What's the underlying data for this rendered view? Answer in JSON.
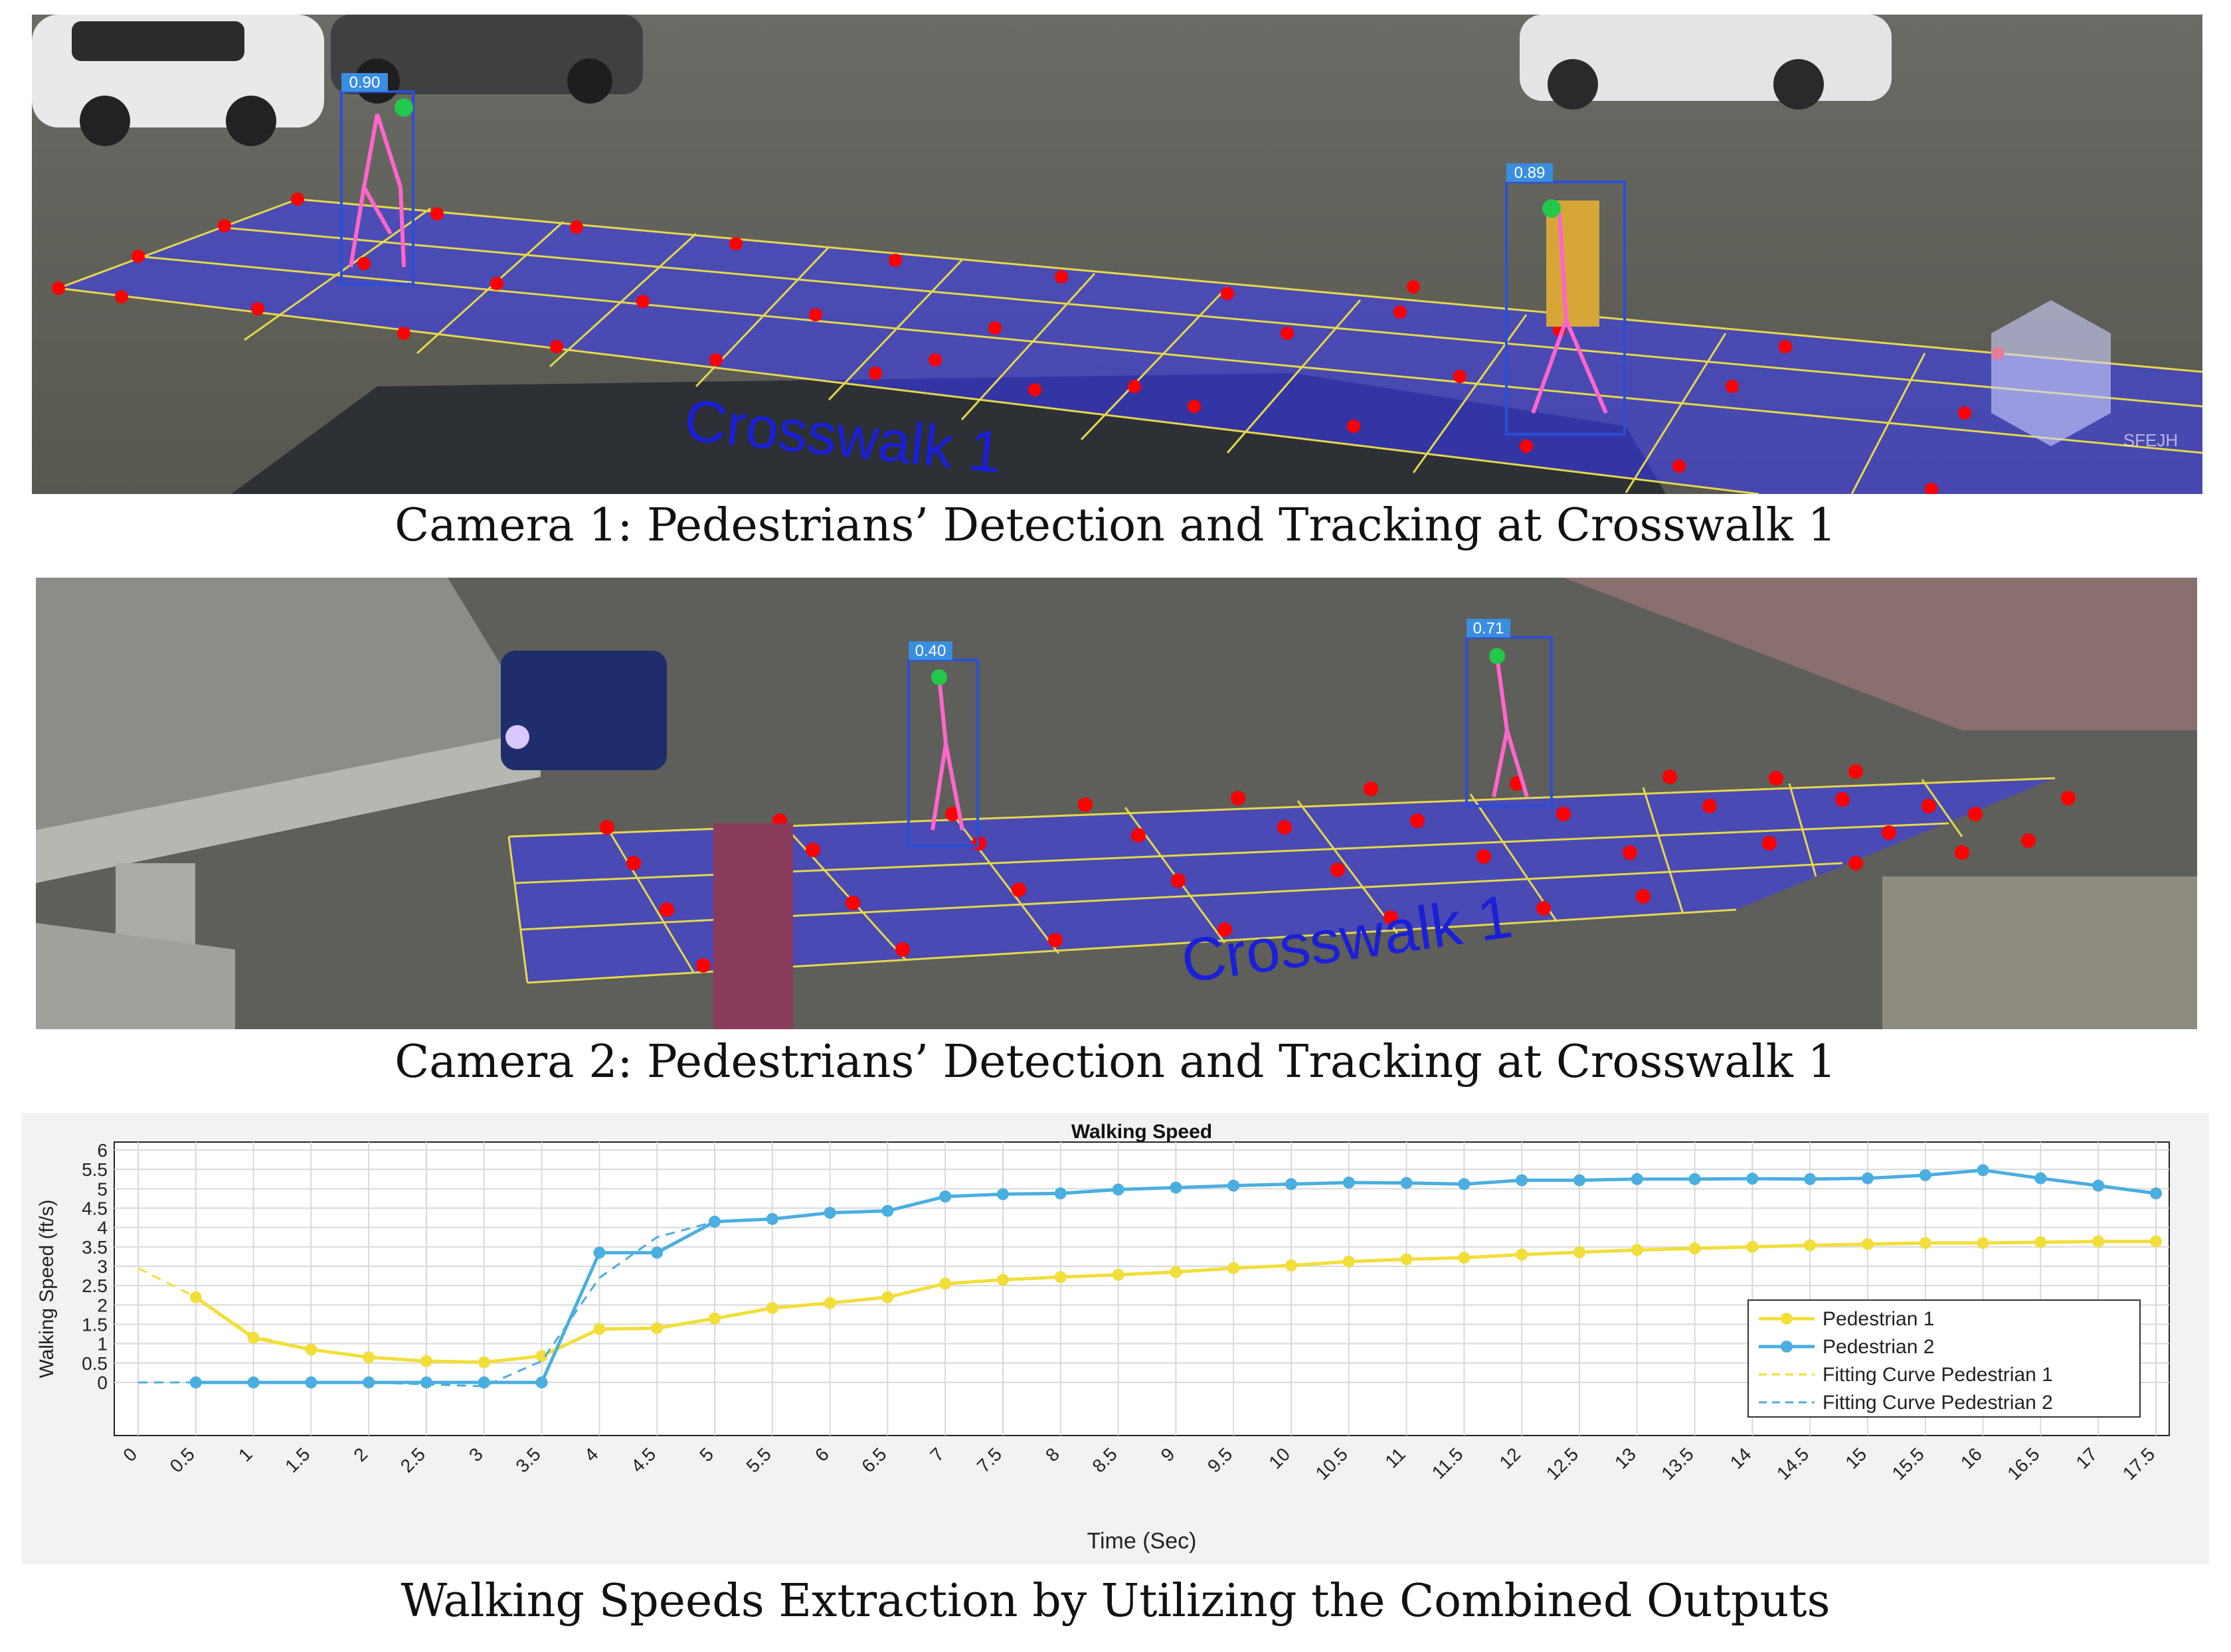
{
  "panels": {
    "camera1": {
      "caption": "Camera 1: Pedestrians’ Detection and Tracking at Crosswalk 1",
      "crosswalk_label": "Crosswalk 1",
      "detections": [
        {
          "score": "0.90"
        },
        {
          "score": "0.89"
        }
      ],
      "watermark": "SFEJH",
      "colors": {
        "zone": "#3a3aff",
        "grid": "#e6d84a",
        "keypoint": "#ff0000",
        "box": "#2a4fd6"
      }
    },
    "camera2": {
      "caption": "Camera 2: Pedestrians’ Detection and Tracking at Crosswalk 1",
      "crosswalk_label": "Crosswalk 1",
      "detections": [
        {
          "score": "0.40"
        },
        {
          "score": "0.71"
        }
      ]
    },
    "speed_chart": {
      "caption": "Walking Speeds Extraction by Utilizing the Combined Outputs"
    }
  },
  "chart_data": {
    "type": "line",
    "title": "Walking Speed",
    "xlabel": "Time (Sec)",
    "ylabel": "Walking Speed (ft/s)",
    "xlim": [
      0,
      17.5
    ],
    "ylim": [
      0,
      6
    ],
    "xticks": [
      "0",
      "0.5",
      "1",
      "1.5",
      "2",
      "2.5",
      "3",
      "3.5",
      "4",
      "4.5",
      "5",
      "5.5",
      "6",
      "6.5",
      "7",
      "7.5",
      "8",
      "8.5",
      "9",
      "9.5",
      "10",
      "10.5",
      "11",
      "11.5",
      "12",
      "12.5",
      "13",
      "13.5",
      "14",
      "14.5",
      "15",
      "15.5",
      "16",
      "16.5",
      "17",
      "17.5"
    ],
    "yticks": [
      "0",
      "0.5",
      "1",
      "1.5",
      "2",
      "2.5",
      "3",
      "3.5",
      "4",
      "4.5",
      "5",
      "5.5",
      "6"
    ],
    "grid": true,
    "legend_position": "right",
    "series": [
      {
        "name": "Pedestrian 1",
        "color": "#f2de3a",
        "style": "solid-markers",
        "x": [
          0.5,
          1,
          1.5,
          2,
          2.5,
          3,
          3.5,
          4,
          4.5,
          5,
          5.5,
          6,
          6.5,
          7,
          7.5,
          8,
          8.5,
          9,
          9.5,
          10,
          10.5,
          11,
          11.5,
          12,
          12.5,
          13,
          13.5,
          14,
          14.5,
          15,
          15.5,
          16,
          16.5,
          17,
          17.5
        ],
        "values": [
          2.2,
          1.15,
          0.85,
          0.65,
          0.55,
          0.52,
          0.68,
          1.38,
          1.4,
          1.65,
          1.92,
          2.05,
          2.2,
          2.55,
          2.65,
          2.72,
          2.78,
          2.85,
          2.95,
          3.02,
          3.12,
          3.18,
          3.22,
          3.3,
          3.36,
          3.42,
          3.46,
          3.5,
          3.54,
          3.57,
          3.6,
          3.6,
          3.62,
          3.64,
          3.64
        ]
      },
      {
        "name": "Pedestrian 2",
        "color": "#4aaee0",
        "style": "solid-markers",
        "x": [
          0.5,
          1,
          1.5,
          2,
          2.5,
          3,
          3.5,
          4,
          4.5,
          5,
          5.5,
          6,
          6.5,
          7,
          7.5,
          8,
          8.5,
          9,
          9.5,
          10,
          10.5,
          11,
          11.5,
          12,
          12.5,
          13,
          13.5,
          14,
          14.5,
          15,
          15.5,
          16,
          16.5,
          17,
          17.5
        ],
        "values": [
          0,
          0,
          0,
          0,
          0,
          0,
          0,
          3.35,
          3.35,
          4.15,
          4.22,
          4.38,
          4.43,
          4.8,
          4.86,
          4.88,
          4.98,
          5.03,
          5.08,
          5.12,
          5.16,
          5.15,
          5.12,
          5.22,
          5.22,
          5.25,
          5.25,
          5.26,
          5.25,
          5.27,
          5.35,
          5.48,
          5.27,
          5.08,
          4.88
        ]
      },
      {
        "name": "Fitting Curve Pedestrian 1",
        "color": "#f2de3a",
        "style": "dashed",
        "x": [
          0,
          0.5,
          1,
          1.5,
          2,
          2.5,
          3,
          3.5,
          4,
          4.5,
          5,
          5.5,
          6,
          6.5,
          7,
          7.5,
          8,
          8.5,
          9,
          9.5,
          10,
          10.5,
          11,
          11.5,
          12,
          12.5,
          13,
          13.5,
          14,
          14.5,
          15,
          15.5,
          16,
          16.5,
          17,
          17.5
        ],
        "values": [
          2.95,
          2.2,
          1.2,
          0.85,
          0.65,
          0.55,
          0.52,
          0.7,
          1.35,
          1.42,
          1.65,
          1.92,
          2.05,
          2.2,
          2.55,
          2.65,
          2.72,
          2.78,
          2.85,
          2.95,
          3.02,
          3.12,
          3.18,
          3.22,
          3.3,
          3.36,
          3.42,
          3.46,
          3.5,
          3.54,
          3.57,
          3.6,
          3.6,
          3.62,
          3.64,
          3.64
        ]
      },
      {
        "name": "Fitting Curve Pedestrian 2",
        "color": "#4aaee0",
        "style": "dashed",
        "x": [
          0,
          0.5,
          1,
          1.5,
          2,
          2.5,
          3,
          3.5,
          4,
          4.5,
          5,
          5.5,
          6,
          6.5,
          7,
          7.5,
          8,
          8.5,
          9,
          9.5,
          10,
          10.5,
          11,
          11.5,
          12,
          12.5,
          13,
          13.5,
          14,
          14.5,
          15,
          15.5,
          16,
          16.5,
          17,
          17.5
        ],
        "values": [
          0,
          0,
          0,
          0,
          0,
          -0.05,
          -0.1,
          0.55,
          2.7,
          3.75,
          4.15,
          4.22,
          4.38,
          4.43,
          4.8,
          4.86,
          4.88,
          4.98,
          5.03,
          5.08,
          5.12,
          5.16,
          5.15,
          5.12,
          5.22,
          5.22,
          5.25,
          5.25,
          5.26,
          5.25,
          5.27,
          5.35,
          5.48,
          5.27,
          5.08,
          4.88
        ]
      }
    ]
  }
}
